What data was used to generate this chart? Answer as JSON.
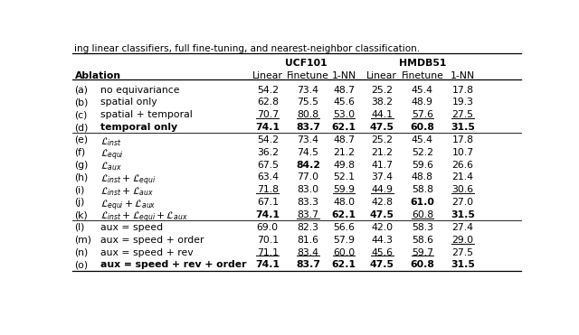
{
  "title_text": "ing linear classifiers, full fine-tuning, and nearest-neighbor classification.",
  "rows": [
    {
      "label": "(a)",
      "desc": "no equivariance",
      "vals": [
        "54.2",
        "73.4",
        "48.7",
        "25.2",
        "45.4",
        "17.8"
      ],
      "bold": [],
      "underline": [],
      "italic_desc": false,
      "bold_desc": false
    },
    {
      "label": "(b)",
      "desc": "spatial only",
      "vals": [
        "62.8",
        "75.5",
        "45.6",
        "38.2",
        "48.9",
        "19.3"
      ],
      "bold": [],
      "underline": [],
      "italic_desc": false,
      "bold_desc": false
    },
    {
      "label": "(c)",
      "desc": "spatial + temporal",
      "vals": [
        "70.7",
        "80.8",
        "53.0",
        "44.1",
        "57.6",
        "27.5"
      ],
      "bold": [],
      "underline": [
        0,
        1,
        2,
        3,
        4,
        5
      ],
      "italic_desc": false,
      "bold_desc": false
    },
    {
      "label": "(d)",
      "desc": "temporal only",
      "vals": [
        "74.1",
        "83.7",
        "62.1",
        "47.5",
        "60.8",
        "31.5"
      ],
      "bold": [
        0,
        1,
        2,
        3,
        4,
        5
      ],
      "underline": [],
      "italic_desc": false,
      "bold_desc": true
    },
    {
      "label": "(e)",
      "desc": "L_inst",
      "vals": [
        "54.2",
        "73.4",
        "48.7",
        "25.2",
        "45.4",
        "17.8"
      ],
      "bold": [],
      "underline": [],
      "italic_desc": true,
      "bold_desc": false
    },
    {
      "label": "(f)",
      "desc": "L_equi",
      "vals": [
        "36.2",
        "74.5",
        "21.2",
        "21.2",
        "52.2",
        "10.7"
      ],
      "bold": [],
      "underline": [],
      "italic_desc": true,
      "bold_desc": false
    },
    {
      "label": "(g)",
      "desc": "L_aux",
      "vals": [
        "67.5",
        "84.2",
        "49.8",
        "41.7",
        "59.6",
        "26.6"
      ],
      "bold": [
        1
      ],
      "underline": [],
      "italic_desc": true,
      "bold_desc": false
    },
    {
      "label": "(h)",
      "desc": "L_inst + L_equi",
      "vals": [
        "63.4",
        "77.0",
        "52.1",
        "37.4",
        "48.8",
        "21.4"
      ],
      "bold": [],
      "underline": [],
      "italic_desc": true,
      "bold_desc": false
    },
    {
      "label": "(i)",
      "desc": "L_inst + L_aux",
      "vals": [
        "71.8",
        "83.0",
        "59.9",
        "44.9",
        "58.8",
        "30.6"
      ],
      "bold": [],
      "underline": [
        0,
        2,
        3,
        5
      ],
      "italic_desc": true,
      "bold_desc": false
    },
    {
      "label": "(j)",
      "desc": "L_equi + L_aux",
      "vals": [
        "67.1",
        "83.3",
        "48.0",
        "42.8",
        "61.0",
        "27.0"
      ],
      "bold": [
        4
      ],
      "underline": [],
      "italic_desc": true,
      "bold_desc": false
    },
    {
      "label": "(k)",
      "desc": "L_inst + L_equi + L_aux",
      "vals": [
        "74.1",
        "83.7",
        "62.1",
        "47.5",
        "60.8",
        "31.5"
      ],
      "bold": [
        0,
        2,
        3,
        5
      ],
      "underline": [
        1,
        4
      ],
      "italic_desc": true,
      "bold_desc": true
    },
    {
      "label": "(l)",
      "desc": "aux = speed",
      "vals": [
        "69.0",
        "82.3",
        "56.6",
        "42.0",
        "58.3",
        "27.4"
      ],
      "bold": [],
      "underline": [],
      "italic_desc": false,
      "bold_desc": false
    },
    {
      "label": "(m)",
      "desc": "aux = speed + order",
      "vals": [
        "70.1",
        "81.6",
        "57.9",
        "44.3",
        "58.6",
        "29.0"
      ],
      "bold": [],
      "underline": [
        5
      ],
      "italic_desc": false,
      "bold_desc": false
    },
    {
      "label": "(n)",
      "desc": "aux = speed + rev",
      "vals": [
        "71.1",
        "83.4",
        "60.0",
        "45.6",
        "59.7",
        "27.5"
      ],
      "bold": [],
      "underline": [
        0,
        1,
        2,
        3,
        4
      ],
      "italic_desc": false,
      "bold_desc": false
    },
    {
      "label": "(o)",
      "desc": "aux = speed + rev + order",
      "vals": [
        "74.1",
        "83.7",
        "62.1",
        "47.5",
        "60.8",
        "31.5"
      ],
      "bold": [
        0,
        1,
        2,
        3,
        4,
        5
      ],
      "underline": [],
      "italic_desc": false,
      "bold_desc": true
    }
  ],
  "section_breaks_after": [
    3,
    10
  ],
  "bg_color": "white",
  "font_size": 7.8,
  "math_map": {
    "L_inst": "$\\mathcal{L}_{inst}$",
    "L_equi": "$\\mathcal{L}_{equi}$",
    "L_aux": "$\\mathcal{L}_{aux}$",
    "L_inst + L_equi": "$\\mathcal{L}_{inst} + \\mathcal{L}_{equi}$",
    "L_inst + L_aux": "$\\mathcal{L}_{inst} + \\mathcal{L}_{aux}$",
    "L_equi + L_aux": "$\\mathcal{L}_{equi} + \\mathcal{L}_{aux}$",
    "L_inst + L_equi + L_aux": "$\\mathcal{L}_{inst} + \\mathcal{L}_{equi} + \\mathcal{L}_{aux}$"
  }
}
